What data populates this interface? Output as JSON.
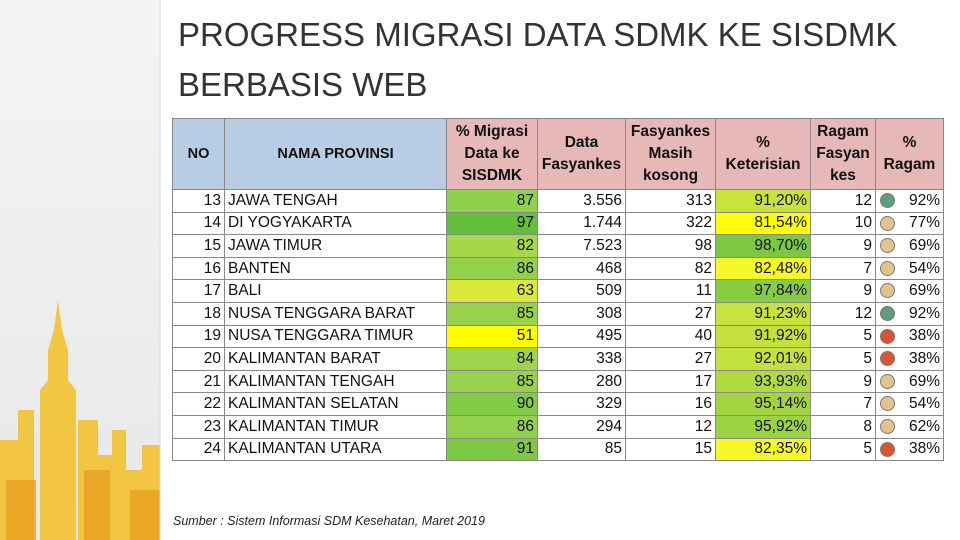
{
  "title": [
    "PROGRESS MIGRASI DATA SDMK KE SISDMK",
    "BERBASIS WEB"
  ],
  "table": {
    "header": [
      [
        "NO"
      ],
      [
        "NAMA PROVINSI"
      ],
      [
        "% Migrasi",
        "Data ke",
        "SISDMK"
      ],
      [
        "Data",
        "Fasyankes"
      ],
      [
        "Fasyankes",
        "Masih",
        "kosong"
      ],
      [
        "%",
        "Keterisian"
      ],
      [
        "Ragam",
        "Fasyan",
        "kes"
      ],
      [
        "%",
        "Ragam"
      ]
    ],
    "header_colors": [
      "#b8cce4",
      "#b8cce4",
      "#e6b8b7",
      "#e6b8b7",
      "#e6b8b7",
      "#e6b8b7",
      "#e6b8b7",
      "#e6b8b7"
    ],
    "rows": [
      [
        "13",
        "JAWA TENGAH",
        "87",
        "3.556",
        "313",
        "91,20%",
        "12",
        "92%"
      ],
      [
        "14",
        "DI YOGYAKARTA",
        "97",
        "1.744",
        "322",
        "81,54%",
        "10",
        "77%"
      ],
      [
        "15",
        "JAWA TIMUR",
        "82",
        "7.523",
        "98",
        "98,70%",
        "9",
        "69%"
      ],
      [
        "16",
        "BANTEN",
        "86",
        "468",
        "82",
        "82,48%",
        "7",
        "54%"
      ],
      [
        "17",
        "BALI",
        "63",
        "509",
        "11",
        "97,84%",
        "9",
        "69%"
      ],
      [
        "18",
        "NUSA TENGGARA BARAT",
        "85",
        "308",
        "27",
        "91,23%",
        "12",
        "92%"
      ],
      [
        "19",
        "NUSA TENGGARA TIMUR",
        "51",
        "495",
        "40",
        "91,92%",
        "5",
        "38%"
      ],
      [
        "20",
        "KALIMANTAN BARAT",
        "84",
        "338",
        "27",
        "92,01%",
        "5",
        "38%"
      ],
      [
        "21",
        "KALIMANTAN TENGAH",
        "85",
        "280",
        "17",
        "93,93%",
        "9",
        "69%"
      ],
      [
        "22",
        "KALIMANTAN SELATAN",
        "90",
        "329",
        "16",
        "95,14%",
        "7",
        "54%"
      ],
      [
        "23",
        "KALIMANTAN TIMUR",
        "86",
        "294",
        "12",
        "95,92%",
        "8",
        "62%"
      ],
      [
        "24",
        "KALIMANTAN UTARA",
        "91",
        "85",
        "15",
        "82,35%",
        "5",
        "38%"
      ]
    ],
    "migrasi_colors": [
      "#8fd04f",
      "#63be3b",
      "#a6d64a",
      "#93d14c",
      "#dde93a",
      "#98d24d",
      "#ffff00",
      "#9ed44c",
      "#98d24d",
      "#82cb46",
      "#93d14c",
      "#7dc944"
    ],
    "keterisian_colors": [
      "#c9e23d",
      "#ffff00",
      "#7cc843",
      "#f6f829",
      "#88cc44",
      "#c9e23d",
      "#c3e03e",
      "#c2e03e",
      "#b0da40",
      "#a3d542",
      "#9cd342",
      "#f7f82a"
    ],
    "ragam_dot_colors": [
      "#5c9e7d",
      "#e3c48a",
      "#e3c48a",
      "#e3c48a",
      "#e3c48a",
      "#5c9e7d",
      "#d9542f",
      "#d9542f",
      "#e3c48a",
      "#e3c48a",
      "#e3c48a",
      "#d9542f"
    ]
  },
  "source": "Sumber : Sistem Informasi SDM Kesehatan, Maret 2019"
}
